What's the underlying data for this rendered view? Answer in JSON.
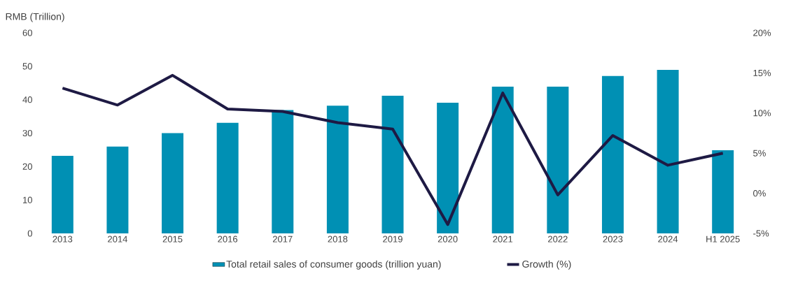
{
  "chart_data": {
    "type": "bar",
    "ylabel": "RMB (Trillion)",
    "categories": [
      "2013",
      "2014",
      "2015",
      "2016",
      "2017",
      "2018",
      "2019",
      "2020",
      "2021",
      "2022",
      "2023",
      "2024",
      "H1 2025"
    ],
    "series": [
      {
        "name": "Total retail sales of consumer goods (trillion yuan)",
        "color": "#0090b4",
        "values": [
          23.2,
          26.0,
          30.0,
          33.1,
          36.9,
          38.2,
          41.2,
          39.1,
          43.9,
          43.9,
          47.1,
          48.9,
          24.9
        ]
      },
      {
        "name": "Growth (%)",
        "type": "line",
        "axis": "y2",
        "color": "#1e1a44",
        "values": [
          13.1,
          11.0,
          14.7,
          10.5,
          10.2,
          8.8,
          8.0,
          -3.9,
          12.5,
          -0.2,
          7.2,
          3.5,
          5.0
        ]
      }
    ],
    "ylim": [
      0,
      60
    ],
    "yticks": [
      0,
      10,
      20,
      30,
      40,
      50,
      60
    ],
    "y2lim": [
      -5,
      20
    ],
    "y2ticks": [
      {
        "value": -5,
        "label": "-5%"
      },
      {
        "value": 0,
        "label": "0%"
      },
      {
        "value": 5,
        "label": "5%"
      },
      {
        "value": 10,
        "label": "10%"
      },
      {
        "value": 15,
        "label": "15%"
      },
      {
        "value": 20,
        "label": "20%"
      }
    ],
    "legend": "bottom",
    "marker": "none",
    "line_style": "solid"
  }
}
